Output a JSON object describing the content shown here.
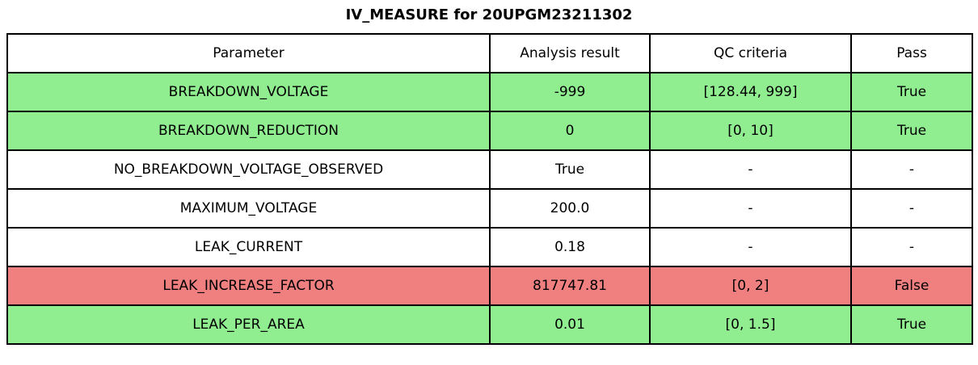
{
  "title": "IV_MEASURE for 20UPGM23211302",
  "colors": {
    "pass_row": "#90ee90",
    "fail_row": "#f08080",
    "neutral_row": "#ffffff",
    "border": "#000000",
    "text": "#000000",
    "background": "#ffffff"
  },
  "chart_data": {
    "type": "table",
    "title": "IV_MEASURE for 20UPGM23211302",
    "columns": [
      "Parameter",
      "Analysis result",
      "QC criteria",
      "Pass"
    ],
    "rows": [
      {
        "parameter": "BREAKDOWN_VOLTAGE",
        "analysis_result": "-999",
        "qc_criteria": "[128.44, 999]",
        "pass": "True",
        "status": "pass"
      },
      {
        "parameter": "BREAKDOWN_REDUCTION",
        "analysis_result": "0",
        "qc_criteria": "[0, 10]",
        "pass": "True",
        "status": "pass"
      },
      {
        "parameter": "NO_BREAKDOWN_VOLTAGE_OBSERVED",
        "analysis_result": "True",
        "qc_criteria": "-",
        "pass": "-",
        "status": "neutral"
      },
      {
        "parameter": "MAXIMUM_VOLTAGE",
        "analysis_result": "200.0",
        "qc_criteria": "-",
        "pass": "-",
        "status": "neutral"
      },
      {
        "parameter": "LEAK_CURRENT",
        "analysis_result": "0.18",
        "qc_criteria": "-",
        "pass": "-",
        "status": "neutral"
      },
      {
        "parameter": "LEAK_INCREASE_FACTOR",
        "analysis_result": "817747.81",
        "qc_criteria": "[0, 2]",
        "pass": "False",
        "status": "fail"
      },
      {
        "parameter": "LEAK_PER_AREA",
        "analysis_result": "0.01",
        "qc_criteria": "[0, 1.5]",
        "pass": "True",
        "status": "pass"
      }
    ],
    "legend_meaning": {
      "pass_row_color_label": "True",
      "fail_row_color_label": "False"
    }
  }
}
